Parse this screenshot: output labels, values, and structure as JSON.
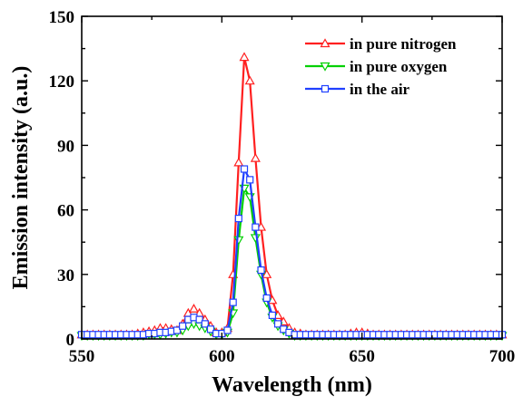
{
  "chart_data": {
    "type": "line",
    "title": "",
    "xlabel": "Wavelength (nm)",
    "ylabel": "Emission intensity (a.u.)",
    "xlim": [
      550,
      700
    ],
    "ylim": [
      0,
      150
    ],
    "xticks": [
      550,
      600,
      650,
      700
    ],
    "yticks": [
      0,
      30,
      60,
      90,
      120,
      150
    ],
    "grid": false,
    "legend_position": "top-right",
    "x": [
      550,
      552,
      554,
      556,
      558,
      560,
      562,
      564,
      566,
      568,
      570,
      572,
      574,
      576,
      578,
      580,
      582,
      584,
      586,
      588,
      590,
      592,
      594,
      596,
      598,
      600,
      602,
      604,
      606,
      608,
      610,
      612,
      614,
      616,
      618,
      620,
      622,
      624,
      626,
      628,
      630,
      632,
      634,
      636,
      638,
      640,
      642,
      644,
      646,
      648,
      650,
      652,
      654,
      656,
      658,
      660,
      662,
      664,
      666,
      668,
      670,
      672,
      674,
      676,
      678,
      680,
      682,
      684,
      686,
      688,
      690,
      692,
      694,
      696,
      698,
      700
    ],
    "series": [
      {
        "name": "in pure nitrogen",
        "color": "#ff2020",
        "marker": "triangle-up",
        "values": [
          2,
          2,
          2,
          2,
          2,
          2,
          2,
          2,
          2,
          2,
          2.5,
          3,
          3.5,
          4,
          5,
          5,
          4.5,
          4,
          7,
          12,
          14,
          12,
          9,
          6,
          3,
          3,
          5,
          30,
          82,
          131,
          120,
          84,
          52,
          30,
          18,
          11,
          8,
          5,
          3,
          2.5,
          2,
          2,
          2,
          2,
          2,
          2,
          2,
          2,
          2.5,
          3,
          3,
          2.5,
          2,
          2,
          2,
          2,
          2,
          2,
          2,
          2,
          2,
          2,
          2,
          2,
          2,
          2,
          2,
          2,
          2,
          2,
          2,
          2,
          2,
          2,
          2,
          2
        ]
      },
      {
        "name": "in pure oxygen",
        "color": "#00d000",
        "marker": "triangle-down",
        "values": [
          1.5,
          1.5,
          1.5,
          1.5,
          1.5,
          1.5,
          1.5,
          1.5,
          1.5,
          1.5,
          1.5,
          1.5,
          2,
          2,
          2,
          2.5,
          3,
          3,
          4,
          6,
          7,
          6,
          5,
          3.5,
          2,
          2,
          3,
          12,
          46,
          70,
          66,
          47,
          30,
          17,
          10,
          6,
          4,
          2.5,
          1.5,
          1.5,
          1.5,
          1.5,
          1.5,
          1.5,
          1.5,
          1.5,
          1.5,
          1.5,
          1.5,
          1.5,
          1.5,
          1.5,
          1.5,
          1.5,
          1.5,
          1.5,
          1.5,
          1.5,
          1.5,
          1.5,
          1.5,
          1.5,
          1.5,
          1.5,
          1.5,
          1.5,
          1.5,
          1.5,
          1.5,
          1.5,
          1.5,
          1.5,
          1.5,
          1.5,
          1.5,
          1.5
        ]
      },
      {
        "name": "in the air",
        "color": "#2040ff",
        "marker": "square",
        "values": [
          2,
          2,
          2,
          2,
          2,
          2,
          2,
          2,
          2,
          2,
          2,
          2,
          2.5,
          2.5,
          3,
          3,
          3.5,
          4,
          6,
          9,
          10,
          9,
          7,
          4.5,
          2.5,
          2.5,
          4,
          17,
          56,
          79,
          74,
          52,
          32,
          19,
          11,
          7,
          4.5,
          3,
          2,
          2,
          2,
          2,
          2,
          2,
          2,
          2,
          2,
          2,
          2,
          2,
          2,
          2,
          2,
          2,
          2,
          2,
          2,
          2,
          2,
          2,
          2,
          2,
          2,
          2,
          2,
          2,
          2,
          2,
          2,
          2,
          2,
          2,
          2,
          2,
          2,
          2
        ]
      }
    ]
  }
}
